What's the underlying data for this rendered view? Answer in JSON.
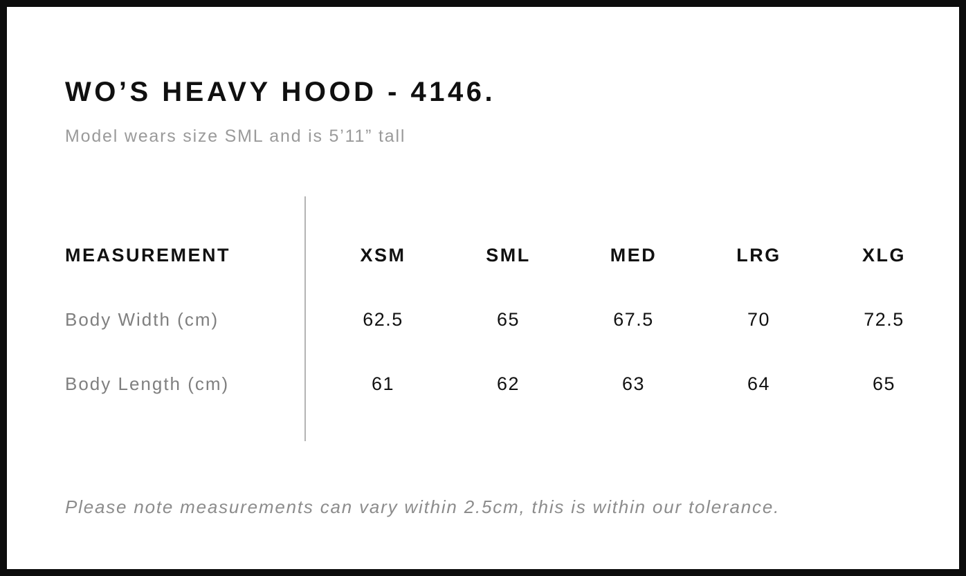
{
  "page": {
    "title": "WO’S HEAVY HOOD - 4146.",
    "subtitle": "Model wears size SML and is 5’11” tall",
    "note": "Please note measurements can vary within 2.5cm, this is within our tolerance."
  },
  "table": {
    "header": [
      "MEASUREMENT",
      "XSM",
      "SML",
      "MED",
      "LRG",
      "XLG"
    ],
    "rows": [
      {
        "label": "Body Width (cm)",
        "values": [
          "62.5",
          "65",
          "67.5",
          "70",
          "72.5"
        ]
      },
      {
        "label": "Body Length (cm)",
        "values": [
          "61",
          "62",
          "63",
          "64",
          "65"
        ]
      }
    ]
  },
  "colors": {
    "frame": "#0d0d0d",
    "text": "#111111",
    "muted_gray": "#8c8c8c",
    "divider_gray": "#b3b3b3"
  }
}
